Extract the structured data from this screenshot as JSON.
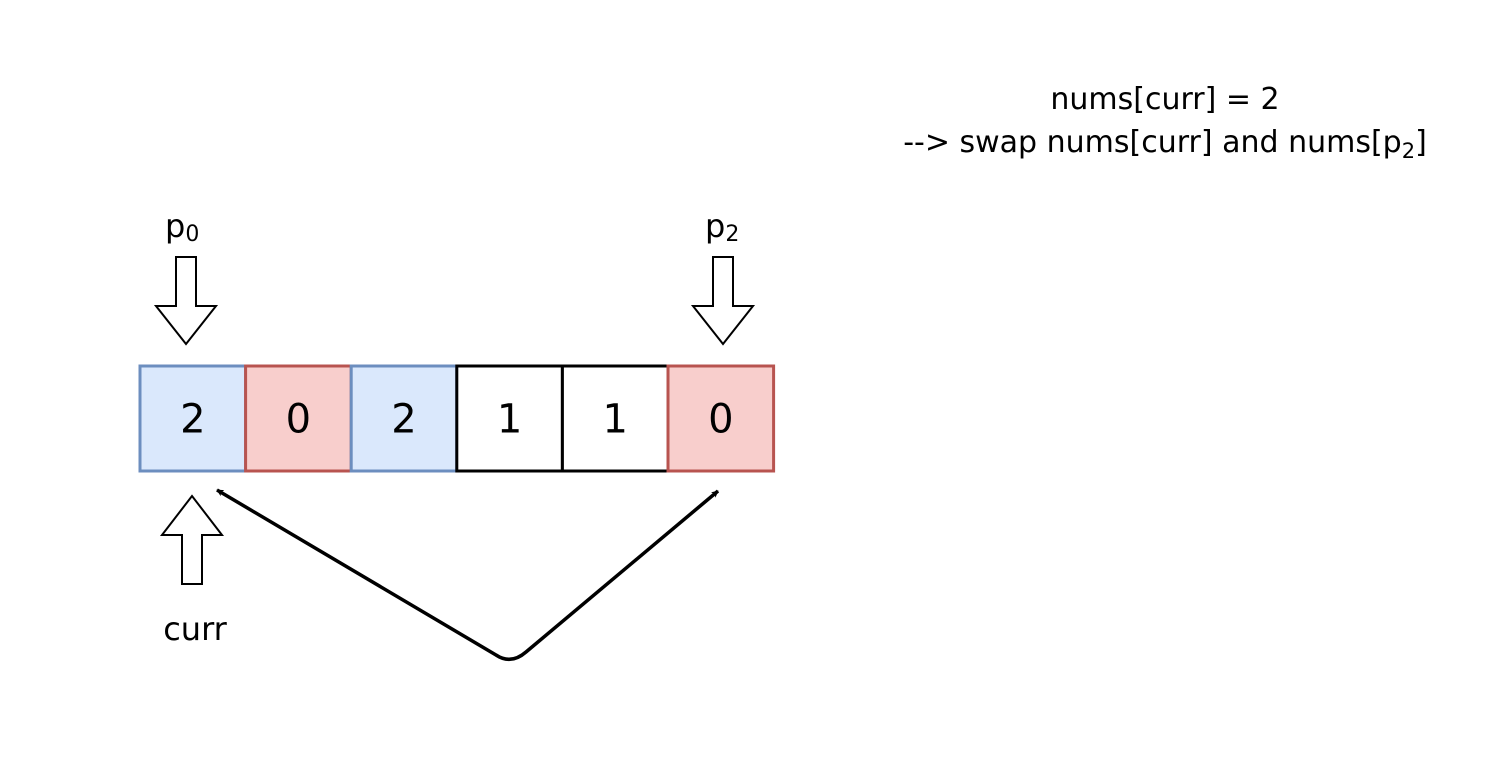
{
  "caption": {
    "line1": "nums[curr] = 2",
    "line2_prefix": "--> swap nums[curr] and nums[p",
    "line2_sub": "2",
    "line2_suffix": "]"
  },
  "pointers": {
    "p0": {
      "base": "p",
      "sub": "0"
    },
    "p2": {
      "base": "p",
      "sub": "2"
    },
    "curr": {
      "label": "curr"
    }
  },
  "array": [
    {
      "value": "2",
      "fill": "#dae8fc",
      "stroke": "#6c8ebf"
    },
    {
      "value": "0",
      "fill": "#f8cecc",
      "stroke": "#b85450"
    },
    {
      "value": "2",
      "fill": "#dae8fc",
      "stroke": "#6c8ebf"
    },
    {
      "value": "1",
      "fill": "#ffffff",
      "stroke": "#000000"
    },
    {
      "value": "1",
      "fill": "#ffffff",
      "stroke": "#000000"
    },
    {
      "value": "0",
      "fill": "#f8cecc",
      "stroke": "#b85450"
    }
  ]
}
